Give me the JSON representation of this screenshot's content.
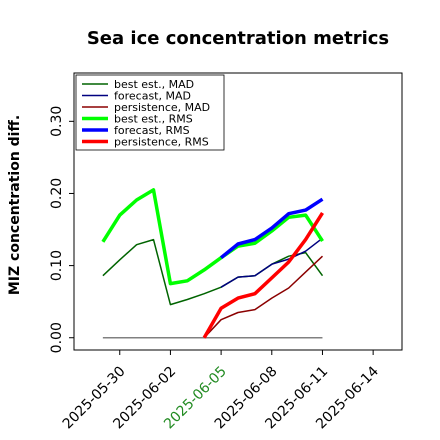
{
  "chart_data": {
    "type": "line",
    "title": "Sea ice concentration metrics",
    "ylabel": "MIZ concentration diff.",
    "x": [
      "2025-05-29",
      "2025-05-30",
      "2025-05-31",
      "2025-06-01",
      "2025-06-02",
      "2025-06-03",
      "2025-06-04",
      "2025-06-05",
      "2025-06-06",
      "2025-06-07",
      "2025-06-08",
      "2025-06-09",
      "2025-06-10",
      "2025-06-11"
    ],
    "xlim": [
      "2025-05-27T07:00",
      "2025-06-15T17:00"
    ],
    "xticks": [
      "2025-05-30",
      "2025-06-02",
      "2025-06-05",
      "2025-06-08",
      "2025-06-11",
      "2025-06-14"
    ],
    "xtick_label_colors": [
      "#000000",
      "#000000",
      "#228b22",
      "#000000",
      "#000000",
      "#000000"
    ],
    "ylim": [
      -0.017,
      0.367
    ],
    "yticks": [
      {
        "value": 0,
        "label": "0.00"
      },
      {
        "value": 0.1,
        "label": "0.10"
      },
      {
        "value": 0.2,
        "label": "0.20"
      },
      {
        "value": 0.3,
        "label": "0.30"
      }
    ],
    "grid": false,
    "legend": "upper left",
    "hlines": [
      {
        "value": 0,
        "color": "#808080"
      }
    ],
    "series": [
      {
        "name": "best est., MAD",
        "color": "#006400",
        "linewidth": 1.5,
        "values": [
          0.086,
          0.108,
          0.129,
          0.136,
          0.046,
          0.053,
          0.061,
          0.07,
          0.084,
          0.086,
          0.102,
          0.113,
          0.118,
          0.086
        ]
      },
      {
        "name": "forecast,  MAD",
        "color": "#000080",
        "linewidth": 1.5,
        "values": [
          null,
          null,
          null,
          null,
          null,
          null,
          null,
          0.07,
          0.084,
          0.086,
          0.102,
          0.109,
          0.12,
          0.138
        ]
      },
      {
        "name": "persistence, MAD",
        "color": "#8b0000",
        "linewidth": 1.5,
        "values": [
          null,
          null,
          null,
          null,
          null,
          null,
          0.0,
          0.025,
          0.035,
          0.039,
          0.055,
          0.069,
          0.091,
          0.113
        ]
      },
      {
        "name": "best est., RMS",
        "color": "#00ff00",
        "linewidth": 3.5,
        "values": [
          0.133,
          0.17,
          0.191,
          0.205,
          0.075,
          0.079,
          0.094,
          0.111,
          0.127,
          0.131,
          0.148,
          0.167,
          0.17,
          0.134
        ]
      },
      {
        "name": "forecast,  RMS",
        "color": "#0000ff",
        "linewidth": 3.5,
        "values": [
          null,
          null,
          null,
          null,
          null,
          null,
          null,
          0.111,
          0.13,
          0.136,
          0.152,
          0.172,
          0.177,
          0.192
        ]
      },
      {
        "name": "persistence, RMS",
        "color": "#ff0000",
        "linewidth": 3.5,
        "values": [
          null,
          null,
          null,
          null,
          null,
          null,
          0.0,
          0.041,
          0.055,
          0.061,
          0.083,
          0.105,
          0.136,
          0.173
        ]
      }
    ]
  }
}
